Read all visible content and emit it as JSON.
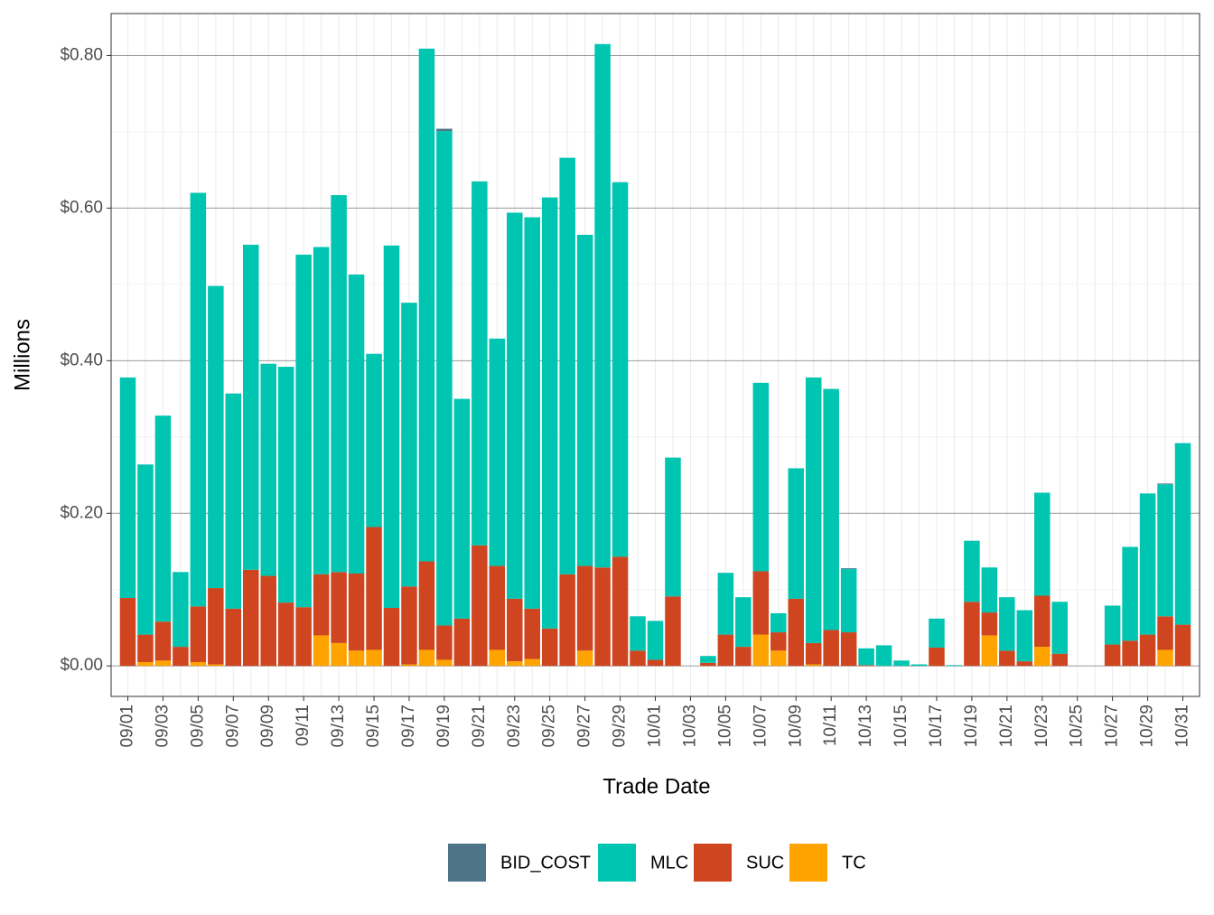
{
  "chart_data": {
    "type": "stacked_bar",
    "x_label": "Trade Date",
    "y_label": "Millions",
    "categories": [
      "09/01",
      null,
      "09/03",
      null,
      "09/05",
      null,
      "09/07",
      null,
      "09/09",
      null,
      "09/11",
      null,
      "09/13",
      null,
      "09/15",
      null,
      "09/17",
      null,
      "09/19",
      null,
      "09/21",
      null,
      "09/23",
      null,
      "09/25",
      null,
      "09/27",
      null,
      "09/29",
      null,
      "10/01",
      null,
      "10/03",
      null,
      "10/05",
      null,
      "10/07",
      null,
      "10/09",
      null,
      "10/11",
      null,
      "10/13",
      null,
      "10/15",
      null,
      "10/17",
      null,
      "10/19",
      null,
      "10/21",
      null,
      "10/23",
      null,
      "10/25",
      null,
      "10/27",
      null,
      "10/29",
      null,
      "10/31"
    ],
    "series": [
      {
        "name": "BID_COST",
        "color": "#4e7489",
        "values": [
          0,
          0,
          0,
          0,
          0,
          0,
          0,
          0,
          0,
          0,
          0,
          0,
          0,
          0,
          0,
          0,
          0,
          0,
          0.003,
          0,
          0,
          0,
          0,
          0,
          0,
          0,
          0,
          0,
          0,
          0,
          0,
          0,
          0,
          0,
          0,
          0,
          0,
          0,
          0,
          0,
          0,
          0.001,
          0,
          0,
          0,
          0,
          0,
          0,
          0,
          0,
          0,
          0,
          0,
          0,
          0,
          0,
          0,
          0,
          0,
          0.001,
          0
        ]
      },
      {
        "name": "MLC",
        "color": "#00c5b0",
        "values": [
          0.289,
          0.223,
          0.27,
          0.098,
          0.542,
          0.396,
          0.282,
          0.426,
          0.278,
          0.309,
          0.462,
          0.429,
          0.494,
          0.392,
          0.227,
          0.475,
          0.372,
          0.672,
          0.648,
          0.288,
          0.477,
          0.298,
          0.506,
          0.513,
          0.565,
          0.546,
          0.434,
          0.686,
          0.491,
          0.045,
          0.051,
          0.182,
          0,
          0.009,
          0.081,
          0.065,
          0.247,
          0.025,
          0.171,
          0.348,
          0.316,
          0.083,
          0.022,
          0.027,
          0.007,
          0.002,
          0.038,
          0.001,
          0.08,
          0.059,
          0.07,
          0.067,
          0.135,
          0.068,
          0,
          0,
          0.051,
          0.123,
          0.185,
          0.173,
          0.238
        ]
      },
      {
        "name": "SUC",
        "color": "#cf4520",
        "values": [
          0.089,
          0.036,
          0.051,
          0.025,
          0.073,
          0.1,
          0.075,
          0.126,
          0.118,
          0.083,
          0.077,
          0.08,
          0.093,
          0.101,
          0.161,
          0.076,
          0.102,
          0.116,
          0.045,
          0.062,
          0.158,
          0.11,
          0.082,
          0.066,
          0.049,
          0.12,
          0.111,
          0.129,
          0.143,
          0.02,
          0.008,
          0.091,
          0,
          0.004,
          0.041,
          0.025,
          0.083,
          0.024,
          0.088,
          0.028,
          0.047,
          0.044,
          0.001,
          0,
          0,
          0,
          0.024,
          0,
          0.084,
          0.03,
          0.02,
          0.006,
          0.067,
          0.016,
          0,
          0,
          0.028,
          0.033,
          0.041,
          0.044,
          0.054
        ]
      },
      {
        "name": "TC",
        "color": "#ffa300",
        "values": [
          0,
          0.005,
          0.007,
          0,
          0.005,
          0.002,
          0,
          0,
          0,
          0,
          0,
          0.04,
          0.03,
          0.02,
          0.021,
          0,
          0.002,
          0.021,
          0.008,
          0,
          0,
          0.021,
          0.006,
          0.009,
          0,
          0,
          0.02,
          0,
          0,
          0,
          0,
          0,
          0,
          0,
          0,
          0,
          0.041,
          0.02,
          0,
          0.002,
          0,
          0,
          0,
          0,
          0,
          0,
          0,
          0,
          0,
          0.04,
          0,
          0,
          0.025,
          0,
          0,
          0,
          0,
          0,
          0,
          0.021,
          0
        ]
      }
    ],
    "ylim": [
      -0.04,
      0.855
    ],
    "yticks": [
      {
        "value": 0,
        "label": "$0.00"
      },
      {
        "value": 0.2,
        "label": "$0.20"
      },
      {
        "value": 0.4,
        "label": "$0.40"
      },
      {
        "value": 0.6,
        "label": "$0.60"
      },
      {
        "value": 0.8,
        "label": "$0.80"
      }
    ],
    "grid": true,
    "legend": "bottom"
  }
}
